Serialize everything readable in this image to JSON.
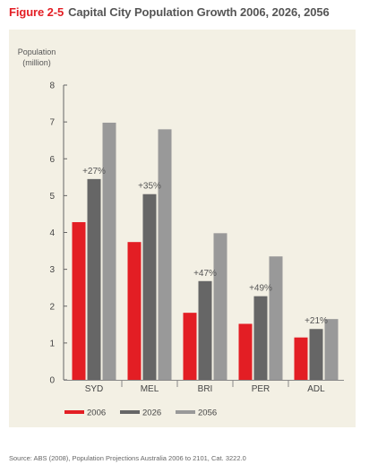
{
  "figure": {
    "number": "Figure 2-5",
    "title": "Capital City Population Growth 2006, 2026, 2056"
  },
  "source": "Source: ABS (2008), Population Projections Australia 2006 to 2101, Cat. 3222.0",
  "colors": {
    "accent": "#e31e24",
    "panel": "#f3f0e4"
  },
  "chart_data": {
    "type": "bar",
    "ylabel": [
      "Population",
      "(million)"
    ],
    "ylim": [
      0,
      8
    ],
    "yticks": [
      0,
      1,
      2,
      3,
      4,
      5,
      6,
      7,
      8
    ],
    "categories": [
      "SYD",
      "MEL",
      "BRI",
      "PER",
      "ADL"
    ],
    "series": [
      {
        "name": "2006",
        "color": "#e31e24",
        "values": [
          4.28,
          3.74,
          1.82,
          1.52,
          1.15
        ]
      },
      {
        "name": "2026",
        "color": "#666666",
        "values": [
          5.45,
          5.04,
          2.68,
          2.27,
          1.38
        ]
      },
      {
        "name": "2056",
        "color": "#999999",
        "values": [
          6.98,
          6.8,
          3.98,
          3.35,
          1.65
        ]
      }
    ],
    "annotations": [
      "+27%",
      "+35%",
      "+47%",
      "+49%",
      "+21%"
    ],
    "legend": "bottom",
    "grid": false
  }
}
